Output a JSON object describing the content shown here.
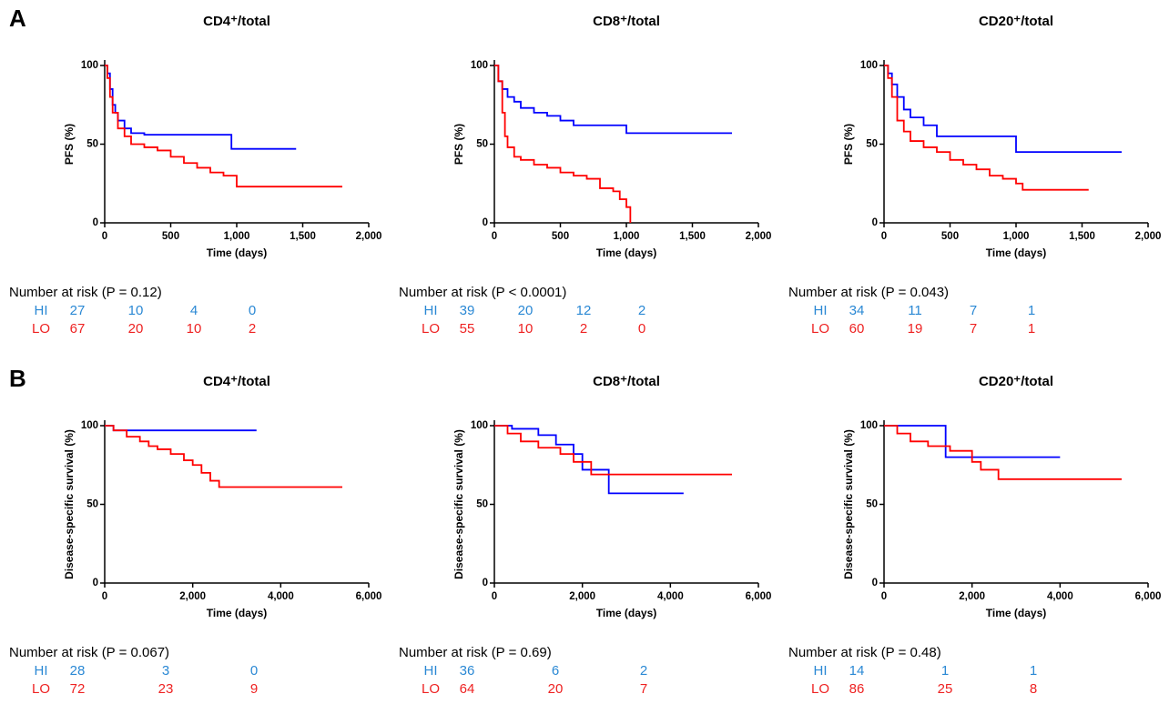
{
  "panel_labels": [
    "A",
    "B"
  ],
  "chart_data": [
    {
      "type": "line",
      "title": "CD4⁺/total",
      "xlabel": "Time (days)",
      "ylabel": "PFS (%)",
      "xlim": [
        0,
        2000
      ],
      "ylim": [
        0,
        100
      ],
      "xticks": [
        0,
        500,
        {
          "value": 1000,
          "label": "1,000"
        },
        {
          "value": 1500,
          "label": "1,500"
        },
        {
          "value": 2000,
          "label": "2,000"
        }
      ],
      "yticks": [
        0,
        50,
        100
      ],
      "risk_label": "Number at risk (P = 0.12)",
      "series": [
        {
          "name": "HI",
          "color": "#0000ff",
          "label_color": "#2a88d4",
          "x": [
            0,
            20,
            40,
            60,
            80,
            100,
            150,
            200,
            300,
            400,
            960,
            1450
          ],
          "values": [
            100,
            95,
            85,
            75,
            70,
            65,
            60,
            57,
            56,
            56,
            47,
            47
          ],
          "at_risk": [
            27,
            10,
            4,
            0
          ]
        },
        {
          "name": "LO",
          "color": "#ff0000",
          "label_color": "#ee2222",
          "x": [
            0,
            20,
            40,
            60,
            100,
            150,
            200,
            300,
            400,
            500,
            600,
            700,
            800,
            900,
            1000,
            1200,
            1800
          ],
          "values": [
            100,
            92,
            80,
            70,
            60,
            55,
            50,
            48,
            46,
            42,
            38,
            35,
            32,
            30,
            23,
            23,
            23
          ],
          "at_risk": [
            67,
            20,
            10,
            2
          ]
        }
      ]
    },
    {
      "type": "line",
      "title": "CD8⁺/total",
      "xlabel": "Time (days)",
      "ylabel": "PFS (%)",
      "xlim": [
        0,
        2000
      ],
      "ylim": [
        0,
        100
      ],
      "xticks": [
        0,
        500,
        {
          "value": 1000,
          "label": "1,000"
        },
        {
          "value": 1500,
          "label": "1,500"
        },
        {
          "value": 2000,
          "label": "2,000"
        }
      ],
      "yticks": [
        0,
        50,
        100
      ],
      "risk_label": "Number at risk (P < 0.0001)",
      "series": [
        {
          "name": "HI",
          "color": "#0000ff",
          "label_color": "#2a88d4",
          "x": [
            0,
            30,
            60,
            100,
            150,
            200,
            300,
            400,
            500,
            600,
            1000,
            1800
          ],
          "values": [
            100,
            90,
            85,
            80,
            77,
            73,
            70,
            68,
            65,
            62,
            57,
            57
          ],
          "at_risk": [
            39,
            20,
            12,
            2
          ]
        },
        {
          "name": "LO",
          "color": "#ff0000",
          "label_color": "#ee2222",
          "x": [
            0,
            30,
            60,
            80,
            100,
            150,
            200,
            300,
            400,
            500,
            600,
            700,
            800,
            900,
            950,
            1000,
            1030
          ],
          "values": [
            100,
            90,
            70,
            55,
            48,
            42,
            40,
            37,
            35,
            32,
            30,
            28,
            22,
            20,
            15,
            10,
            0
          ],
          "at_risk": [
            55,
            10,
            2,
            0
          ]
        }
      ]
    },
    {
      "type": "line",
      "title": "CD20⁺/total",
      "xlabel": "Time (days)",
      "ylabel": "PFS (%)",
      "xlim": [
        0,
        2000
      ],
      "ylim": [
        0,
        100
      ],
      "xticks": [
        0,
        500,
        {
          "value": 1000,
          "label": "1,000"
        },
        {
          "value": 1500,
          "label": "1,500"
        },
        {
          "value": 2000,
          "label": "2,000"
        }
      ],
      "yticks": [
        0,
        50,
        100
      ],
      "risk_label": "Number at risk (P = 0.043)",
      "series": [
        {
          "name": "HI",
          "color": "#0000ff",
          "label_color": "#2a88d4",
          "x": [
            0,
            30,
            60,
            100,
            150,
            200,
            300,
            400,
            950,
            1000,
            1800
          ],
          "values": [
            100,
            95,
            88,
            80,
            72,
            67,
            62,
            55,
            55,
            45,
            45
          ],
          "at_risk": [
            34,
            11,
            7,
            1
          ]
        },
        {
          "name": "LO",
          "color": "#ff0000",
          "label_color": "#ee2222",
          "x": [
            0,
            30,
            60,
            100,
            150,
            200,
            300,
            400,
            500,
            600,
            700,
            800,
            900,
            1000,
            1050,
            1550
          ],
          "values": [
            100,
            92,
            80,
            65,
            58,
            52,
            48,
            45,
            40,
            37,
            34,
            30,
            28,
            25,
            21,
            21
          ],
          "at_risk": [
            60,
            19,
            7,
            1
          ]
        }
      ]
    },
    {
      "type": "line",
      "title": "CD4⁺/total",
      "xlabel": "Time (days)",
      "ylabel": "Disease-specific survival (%)",
      "xlim": [
        0,
        6000
      ],
      "ylim": [
        0,
        100
      ],
      "xticks": [
        0,
        {
          "value": 2000,
          "label": "2,000"
        },
        {
          "value": 4000,
          "label": "4,000"
        },
        {
          "value": 6000,
          "label": "6,000"
        }
      ],
      "yticks": [
        0,
        50,
        100
      ],
      "risk_label": "Number at risk (P = 0.067)",
      "series": [
        {
          "name": "HI",
          "color": "#0000ff",
          "label_color": "#2a88d4",
          "x": [
            0,
            200,
            3450
          ],
          "values": [
            100,
            97,
            97
          ],
          "at_risk": [
            28,
            3,
            0
          ]
        },
        {
          "name": "LO",
          "color": "#ff0000",
          "label_color": "#ee2222",
          "x": [
            0,
            200,
            500,
            800,
            1000,
            1200,
            1500,
            1800,
            2000,
            2200,
            2400,
            2600,
            5400
          ],
          "values": [
            100,
            97,
            93,
            90,
            87,
            85,
            82,
            78,
            75,
            70,
            65,
            61,
            61
          ],
          "at_risk": [
            72,
            23,
            9
          ]
        }
      ]
    },
    {
      "type": "line",
      "title": "CD8⁺/total",
      "xlabel": "Time (days)",
      "ylabel": "Disease-specific survival (%)",
      "xlim": [
        0,
        6000
      ],
      "ylim": [
        0,
        100
      ],
      "xticks": [
        0,
        {
          "value": 2000,
          "label": "2,000"
        },
        {
          "value": 4000,
          "label": "4,000"
        },
        {
          "value": 6000,
          "label": "6,000"
        }
      ],
      "yticks": [
        0,
        50,
        100
      ],
      "risk_label": "Number at risk (P = 0.69)",
      "series": [
        {
          "name": "HI",
          "color": "#0000ff",
          "label_color": "#2a88d4",
          "x": [
            0,
            400,
            1000,
            1400,
            1800,
            2000,
            2600,
            4300
          ],
          "values": [
            100,
            98,
            94,
            88,
            82,
            72,
            57,
            57
          ],
          "at_risk": [
            36,
            6,
            2
          ]
        },
        {
          "name": "LO",
          "color": "#ff0000",
          "label_color": "#ee2222",
          "x": [
            0,
            300,
            600,
            1000,
            1500,
            1800,
            2200,
            5400
          ],
          "values": [
            100,
            95,
            90,
            86,
            82,
            77,
            69,
            69
          ],
          "at_risk": [
            64,
            20,
            7
          ]
        }
      ]
    },
    {
      "type": "line",
      "title": "CD20⁺/total",
      "xlabel": "Time (days)",
      "ylabel": "Disease-specific survival (%)",
      "xlim": [
        0,
        6000
      ],
      "ylim": [
        0,
        100
      ],
      "xticks": [
        0,
        {
          "value": 2000,
          "label": "2,000"
        },
        {
          "value": 4000,
          "label": "4,000"
        },
        {
          "value": 6000,
          "label": "6,000"
        }
      ],
      "yticks": [
        0,
        50,
        100
      ],
      "risk_label": "Number at risk (P = 0.48)",
      "series": [
        {
          "name": "HI",
          "color": "#0000ff",
          "label_color": "#2a88d4",
          "x": [
            0,
            1400,
            4000
          ],
          "values": [
            100,
            80,
            80
          ],
          "at_risk": [
            14,
            1,
            1
          ]
        },
        {
          "name": "LO",
          "color": "#ff0000",
          "label_color": "#ee2222",
          "x": [
            0,
            300,
            600,
            1000,
            1500,
            2000,
            2200,
            2600,
            5400
          ],
          "values": [
            100,
            95,
            90,
            87,
            84,
            77,
            72,
            66,
            66
          ],
          "at_risk": [
            86,
            25,
            8
          ]
        }
      ]
    }
  ]
}
